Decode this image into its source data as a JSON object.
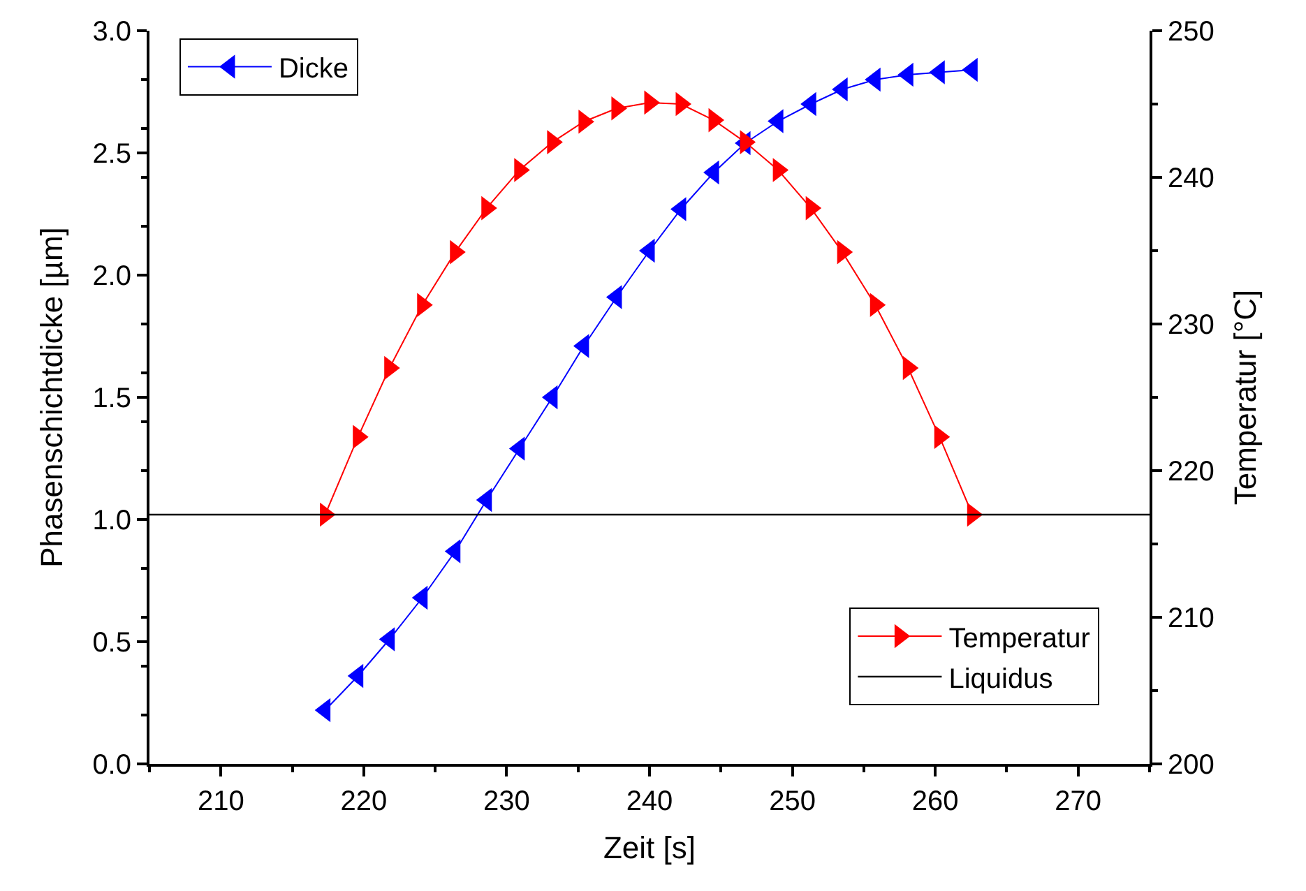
{
  "chart_data": {
    "type": "line",
    "xlabel": "Zeit [s]",
    "ylabel": "Phasenschichtdicke [µm]",
    "y2label": "Temperatur [°C]",
    "x": [
      217.3,
      219.6,
      221.8,
      224.1,
      226.4,
      228.6,
      230.9,
      233.2,
      235.4,
      237.7,
      240.0,
      242.2,
      244.5,
      246.7,
      249.0,
      251.3,
      253.5,
      255.8,
      258.1,
      260.3,
      262.6
    ],
    "series": [
      {
        "name": "Dicke",
        "color": "#0000ff",
        "marker": "triangle-left",
        "values": [
          0.22,
          0.36,
          0.51,
          0.68,
          0.87,
          1.08,
          1.29,
          1.5,
          1.71,
          1.91,
          2.1,
          2.27,
          2.42,
          2.54,
          2.63,
          2.7,
          2.76,
          2.8,
          2.82,
          2.83,
          2.84
        ]
      },
      {
        "name": "Temperatur",
        "color": "#ff0000",
        "marker": "triangle-right",
        "axis": "y2",
        "values": [
          217.0,
          222.3,
          227.0,
          231.3,
          234.9,
          237.9,
          240.5,
          242.4,
          243.8,
          244.7,
          245.1,
          245.0,
          243.9,
          242.4,
          240.5,
          237.9,
          234.9,
          231.3,
          227.0,
          222.3,
          217.0
        ]
      }
    ],
    "ref_lines": [
      {
        "axis": "y2",
        "value": 217.0,
        "label": "Liquidus",
        "color": "#000000"
      }
    ],
    "xlim": [
      205,
      275
    ],
    "xticks": [
      210,
      220,
      230,
      240,
      250,
      260,
      270
    ],
    "ylim": [
      0,
      3
    ],
    "yticks": [
      {
        "value": 0,
        "label": "0.0"
      },
      0.5,
      {
        "value": 1,
        "label": "1.0"
      },
      1.5,
      {
        "value": 2,
        "label": "2.0"
      },
      2.5,
      {
        "value": 3,
        "label": "3.0"
      }
    ],
    "y2lim": [
      200,
      250
    ],
    "y2ticks": [
      200,
      210,
      220,
      230,
      240,
      250
    ],
    "legend": [
      "top left",
      "bottom right"
    ],
    "line_style": "solid"
  }
}
